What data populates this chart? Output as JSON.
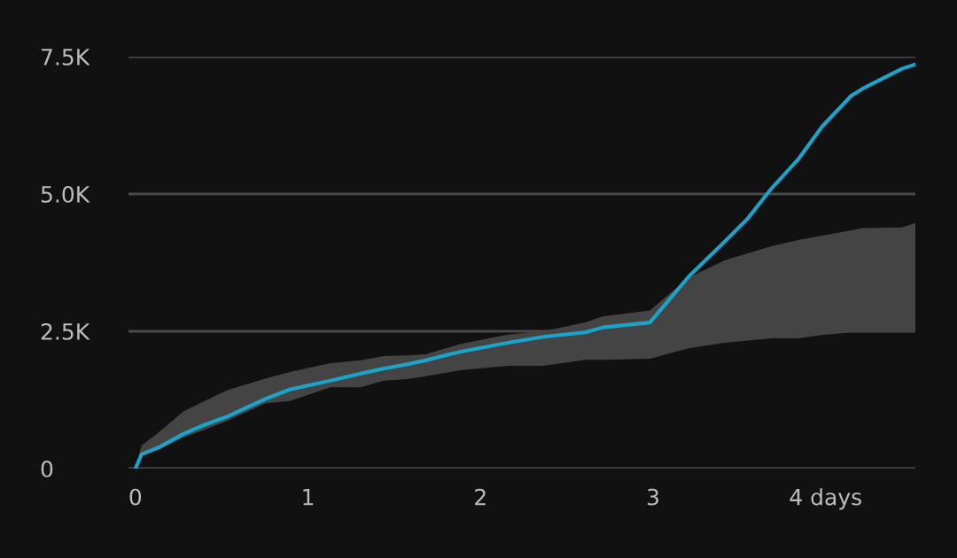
{
  "chart_data": {
    "type": "line",
    "xlim": [
      -0.04,
      4.52
    ],
    "ylim": [
      0,
      7500
    ],
    "xticks": [
      0,
      1,
      2,
      3,
      {
        "value": 4,
        "label": "4 days"
      }
    ],
    "yticks": [
      {
        "value": 0,
        "label": "0"
      },
      {
        "value": 2500,
        "label": "2.5K"
      },
      {
        "value": 5000,
        "label": "5.0K"
      },
      {
        "value": 7500,
        "label": "7.5K"
      }
    ],
    "grid": "y",
    "series": [
      {
        "color": "#1ba3c9",
        "x": [
          0,
          0.036,
          0.139,
          0.278,
          0.396,
          0.535,
          0.617,
          0.756,
          0.895,
          1.131,
          1.306,
          1.44,
          1.578,
          1.681,
          1.887,
          2.159,
          2.365,
          2.607,
          2.709,
          2.982,
          3.208,
          3.414,
          3.548,
          3.686,
          3.841,
          3.98,
          4.149,
          4.216,
          4.442,
          4.52
        ],
        "values": [
          0,
          260,
          390,
          630,
          790,
          950,
          1070,
          1270,
          1440,
          1600,
          1730,
          1820,
          1900,
          1970,
          2130,
          2290,
          2400,
          2480,
          2570,
          2660,
          3500,
          4130,
          4550,
          5100,
          5630,
          6230,
          6790,
          6920,
          7280,
          7360
        ],
        "upper": [
          0,
          420,
          670,
          1040,
          1220,
          1430,
          1510,
          1640,
          1760,
          1920,
          1970,
          2050,
          2060,
          2080,
          2270,
          2440,
          2500,
          2660,
          2770,
          2880,
          3480,
          3790,
          3920,
          4050,
          4160,
          4240,
          4340,
          4380,
          4390,
          4470
        ],
        "lower": [
          0,
          230,
          360,
          560,
          700,
          870,
          990,
          1190,
          1230,
          1480,
          1480,
          1600,
          1630,
          1680,
          1790,
          1870,
          1870,
          1980,
          1980,
          2000,
          2190,
          2290,
          2330,
          2370,
          2370,
          2430,
          2480,
          2480,
          2480,
          2480
        ]
      }
    ]
  }
}
